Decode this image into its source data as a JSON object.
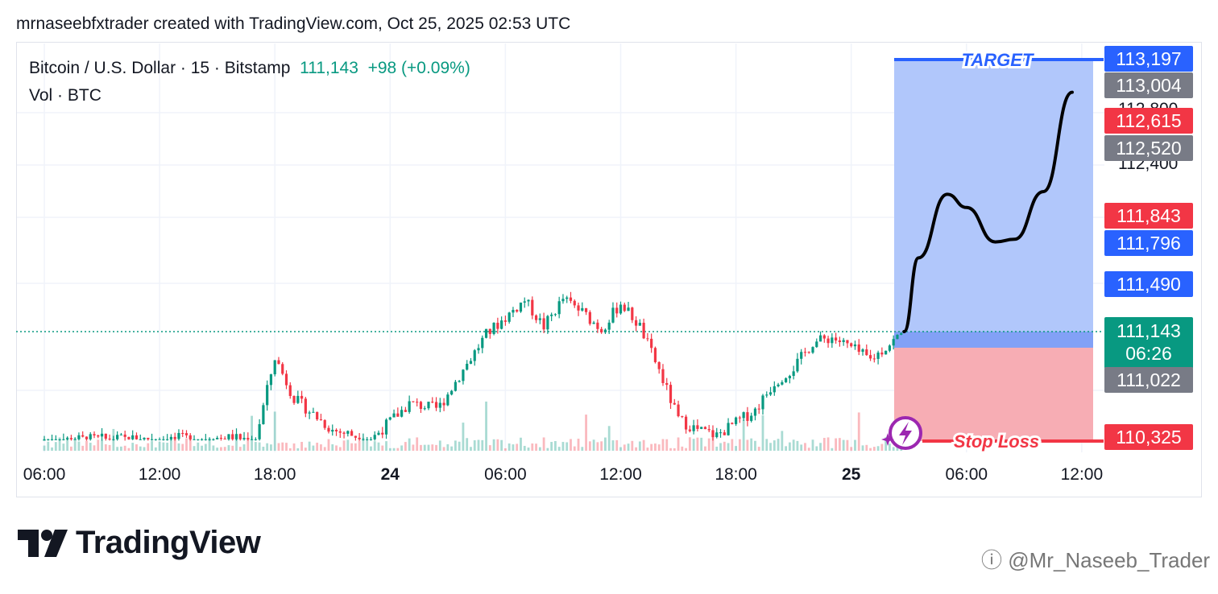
{
  "header": {
    "text": "mrnaseebfxtrader created with TradingView.com, Oct 25, 2025 02:53 UTC"
  },
  "symbol": {
    "name": "Bitcoin / U.S. Dollar · 15 · Bitstamp",
    "price": "111,143",
    "change": "+98 (+0.09%)"
  },
  "volume_label": "Vol · BTC",
  "brand": {
    "logo_text": "TradingView",
    "watermark": "@Mr_Naseeb_Trader"
  },
  "annotations": {
    "target": "TARGET",
    "stop_loss": "Stop Loss"
  },
  "colors": {
    "up": "#089981",
    "down": "#f23645",
    "target_zone": "#adc4fb",
    "stop_zone": "#f7a9b0",
    "blue_label": "#2962ff",
    "gray_label": "#787b86",
    "red_label": "#f23645",
    "green_label": "#089981"
  },
  "price_labels": [
    {
      "text": "113,197",
      "kind": "blue"
    },
    {
      "text": "113,004",
      "kind": "gray"
    },
    {
      "text": "112,615",
      "kind": "red"
    },
    {
      "text": "112,520",
      "kind": "gray"
    },
    {
      "text": "111,843",
      "kind": "red"
    },
    {
      "text": "111,796",
      "kind": "blue"
    },
    {
      "text": "111,490",
      "kind": "blue"
    },
    {
      "text": "111,143",
      "kind": "green",
      "sub": "06:26"
    },
    {
      "text": "111,022",
      "kind": "gray"
    },
    {
      "text": "110,325",
      "kind": "red"
    }
  ],
  "axis_ticks_partial": [
    "112,800",
    "112,400"
  ],
  "chart_data": {
    "type": "candlestick",
    "title": "Bitcoin / U.S. Dollar · 15 · Bitstamp",
    "x_ticks": [
      {
        "label": "06:00",
        "bold": false
      },
      {
        "label": "12:00",
        "bold": false
      },
      {
        "label": "18:00",
        "bold": false
      },
      {
        "label": "24",
        "bold": true
      },
      {
        "label": "06:00",
        "bold": false
      },
      {
        "label": "12:00",
        "bold": false
      },
      {
        "label": "18:00",
        "bold": false
      },
      {
        "label": "25",
        "bold": true
      },
      {
        "label": "06:00",
        "bold": false
      },
      {
        "label": "12:00",
        "bold": false
      }
    ],
    "y_range": [
      110300,
      113300
    ],
    "series": [
      {
        "name": "Bitcoin / U.S. Dollar",
        "close_points": [
          [
            "2025-10-23 06:00",
            110320
          ],
          [
            "2025-10-23 09:00",
            110330
          ],
          [
            "2025-10-23 12:00",
            110330
          ],
          [
            "2025-10-23 15:00",
            110340
          ],
          [
            "2025-10-23 17:00",
            110330
          ],
          [
            "2025-10-23 18:00",
            110950
          ],
          [
            "2025-10-23 19:00",
            110640
          ],
          [
            "2025-10-23 21:00",
            110400
          ],
          [
            "2025-10-23 23:00",
            110330
          ],
          [
            "2025-10-24 01:00",
            110600
          ],
          [
            "2025-10-24 02:30",
            110560
          ],
          [
            "2025-10-24 04:00",
            110900
          ],
          [
            "2025-10-24 05:00",
            111120
          ],
          [
            "2025-10-24 07:00",
            111380
          ],
          [
            "2025-10-24 08:00",
            111180
          ],
          [
            "2025-10-24 09:00",
            111390
          ],
          [
            "2025-10-24 10:00",
            111290
          ],
          [
            "2025-10-24 11:00",
            111160
          ],
          [
            "2025-10-24 12:00",
            111360
          ],
          [
            "2025-10-24 13:00",
            111180
          ],
          [
            "2025-10-24 14:00",
            110850
          ],
          [
            "2025-10-24 15:00",
            110480
          ],
          [
            "2025-10-24 16:00",
            110400
          ],
          [
            "2025-10-24 17:00",
            110360
          ],
          [
            "2025-10-24 19:00",
            110550
          ],
          [
            "2025-10-24 20:00",
            110760
          ],
          [
            "2025-10-24 21:00",
            110870
          ],
          [
            "2025-10-24 22:00",
            111060
          ],
          [
            "2025-10-24 23:00",
            111100
          ],
          [
            "2025-10-25 00:00",
            111020
          ],
          [
            "2025-10-25 01:00",
            110930
          ],
          [
            "2025-10-25 02:00",
            111050
          ],
          [
            "2025-10-25 02:45",
            111143
          ]
        ]
      },
      {
        "name": "Projection",
        "points": [
          [
            "2025-10-25 02:45",
            111143
          ],
          [
            "2025-10-25 03:30",
            111700
          ],
          [
            "2025-10-25 05:00",
            112180
          ],
          [
            "2025-10-25 06:00",
            112080
          ],
          [
            "2025-10-25 07:30",
            111820
          ],
          [
            "2025-10-25 08:30",
            111840
          ],
          [
            "2025-10-25 10:00",
            112200
          ],
          [
            "2025-10-25 11:30",
            112950
          ]
        ]
      }
    ],
    "levels": {
      "target": 113197,
      "entry": 111143,
      "stop_loss": 110325
    },
    "grid": true,
    "legend": "top-left"
  }
}
